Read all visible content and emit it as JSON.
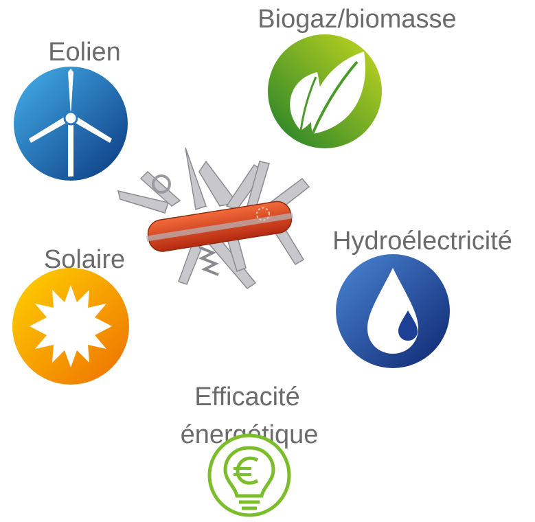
{
  "nodes": [
    {
      "lines": [
        "Eolien"
      ]
    },
    {
      "lines": [
        "Biogaz/biomasse"
      ]
    },
    {
      "lines": [
        "Solaire"
      ]
    },
    {
      "lines": [
        "Hydroélectricité"
      ]
    },
    {
      "lines": [
        "Efficacité",
        "énergétique"
      ]
    }
  ]
}
